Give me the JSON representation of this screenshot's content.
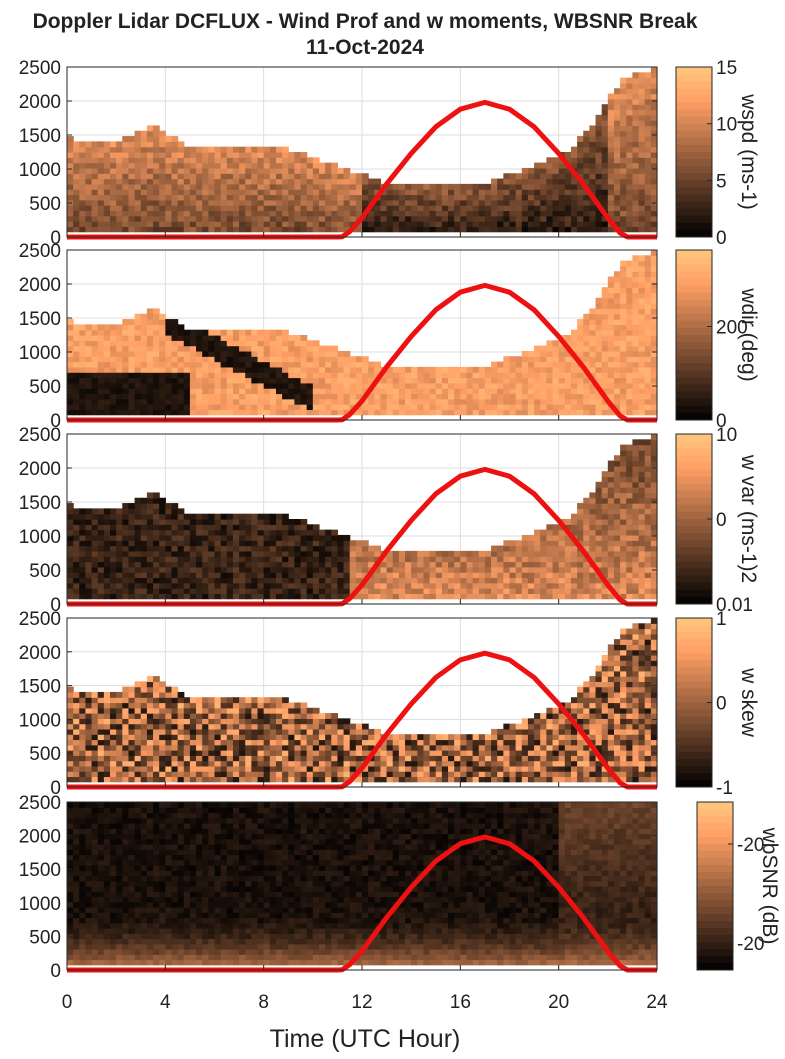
{
  "chart_data": {
    "type": "heatmap",
    "title_line1": "Doppler Lidar DCFLUX - Wind Prof and w moments, WBSNR Break",
    "title_line2": "11-Oct-2024",
    "xlabel": "Time (UTC Hour)",
    "xlim": [
      0,
      24
    ],
    "xticks": [
      "0",
      "4",
      "8",
      "12",
      "16",
      "20",
      "24"
    ],
    "colormap": "copper",
    "colors": {
      "curve": "#ee1111",
      "grid": "#dddddd"
    },
    "panels": [
      {
        "variable": "wspd",
        "colorbar_label": "wspd (ms-1)",
        "colorbar_ticks": [
          "15",
          "10",
          "5",
          "0"
        ],
        "clim": [
          0,
          15
        ],
        "ylim": [
          0,
          2500
        ],
        "yticks": [
          "2500",
          "2000",
          "1500",
          "1000",
          "500",
          "0"
        ],
        "data_top_profile": [
          [
            0,
            1450
          ],
          [
            2,
            1400
          ],
          [
            3.6,
            1650
          ],
          [
            5,
            1300
          ],
          [
            7,
            1350
          ],
          [
            9,
            1300
          ],
          [
            11,
            1050
          ],
          [
            13,
            800
          ],
          [
            15,
            750
          ],
          [
            17,
            800
          ],
          [
            19,
            1050
          ],
          [
            20.5,
            1300
          ],
          [
            21.5,
            1700
          ],
          [
            22.5,
            2300
          ],
          [
            24,
            2500
          ]
        ]
      },
      {
        "variable": "wdir",
        "colorbar_label": "wdir (deg)",
        "colorbar_ticks": [
          "200",
          "0"
        ],
        "clim": [
          0,
          360
        ],
        "ylim": [
          0,
          2500
        ],
        "yticks": [
          "2500",
          "2000",
          "1500",
          "1000",
          "500",
          "0"
        ],
        "data_top_profile": [
          [
            0,
            1450
          ],
          [
            2,
            1400
          ],
          [
            3.6,
            1650
          ],
          [
            5,
            1300
          ],
          [
            7,
            1350
          ],
          [
            9,
            1300
          ],
          [
            11,
            1050
          ],
          [
            13,
            800
          ],
          [
            15,
            750
          ],
          [
            17,
            800
          ],
          [
            19,
            1050
          ],
          [
            20.5,
            1300
          ],
          [
            21.5,
            1700
          ],
          [
            22.5,
            2300
          ],
          [
            24,
            2500
          ]
        ]
      },
      {
        "variable": "w var",
        "colorbar_label": "w var (ms-1)2",
        "colorbar_ticks": [
          "10",
          "0",
          "0.01"
        ],
        "clim": [
          0.01,
          10
        ],
        "ylim": [
          0,
          2500
        ],
        "yticks": [
          "2500",
          "2000",
          "1500",
          "1000",
          "500",
          "0"
        ],
        "data_top_profile": [
          [
            0,
            1450
          ],
          [
            2,
            1400
          ],
          [
            3.6,
            1650
          ],
          [
            5,
            1300
          ],
          [
            7,
            1350
          ],
          [
            9,
            1300
          ],
          [
            11,
            1050
          ],
          [
            13,
            800
          ],
          [
            15,
            750
          ],
          [
            17,
            800
          ],
          [
            19,
            1050
          ],
          [
            20.5,
            1300
          ],
          [
            21.5,
            1700
          ],
          [
            22.5,
            2300
          ],
          [
            24,
            2500
          ]
        ]
      },
      {
        "variable": "w skew",
        "colorbar_label": "w skew",
        "colorbar_ticks": [
          "1",
          "0",
          "-1"
        ],
        "clim": [
          -1,
          1
        ],
        "ylim": [
          0,
          2500
        ],
        "yticks": [
          "2500",
          "2000",
          "1500",
          "1000",
          "500",
          "0"
        ],
        "data_top_profile": [
          [
            0,
            1450
          ],
          [
            2,
            1400
          ],
          [
            3.6,
            1650
          ],
          [
            5,
            1300
          ],
          [
            7,
            1350
          ],
          [
            9,
            1300
          ],
          [
            11,
            1050
          ],
          [
            13,
            800
          ],
          [
            15,
            750
          ],
          [
            17,
            800
          ],
          [
            19,
            1050
          ],
          [
            20.5,
            1300
          ],
          [
            21.5,
            1700
          ],
          [
            22.5,
            2300
          ],
          [
            24,
            2500
          ]
        ]
      },
      {
        "variable": "wbSNR",
        "colorbar_label": "wbSNR (dB)",
        "colorbar_ticks": [
          "-20",
          "-20"
        ],
        "clim": [
          -35,
          -10
        ],
        "ylim": [
          0,
          2500
        ],
        "yticks": [
          "2500",
          "2000",
          "1500",
          "1000",
          "500",
          "0"
        ],
        "data_top_profile": [
          [
            0,
            2500
          ],
          [
            24,
            2500
          ]
        ]
      }
    ],
    "overlay_curve": {
      "color": "#ee1111",
      "points": [
        [
          0,
          0
        ],
        [
          11,
          0
        ],
        [
          11.2,
          5
        ],
        [
          11.5,
          80
        ],
        [
          12,
          280
        ],
        [
          13,
          780
        ],
        [
          14,
          1230
        ],
        [
          15,
          1620
        ],
        [
          16,
          1880
        ],
        [
          17,
          1980
        ],
        [
          18,
          1880
        ],
        [
          19,
          1620
        ],
        [
          20,
          1230
        ],
        [
          21,
          780
        ],
        [
          22,
          280
        ],
        [
          22.5,
          60
        ],
        [
          22.8,
          0
        ],
        [
          24,
          0
        ]
      ]
    }
  }
}
